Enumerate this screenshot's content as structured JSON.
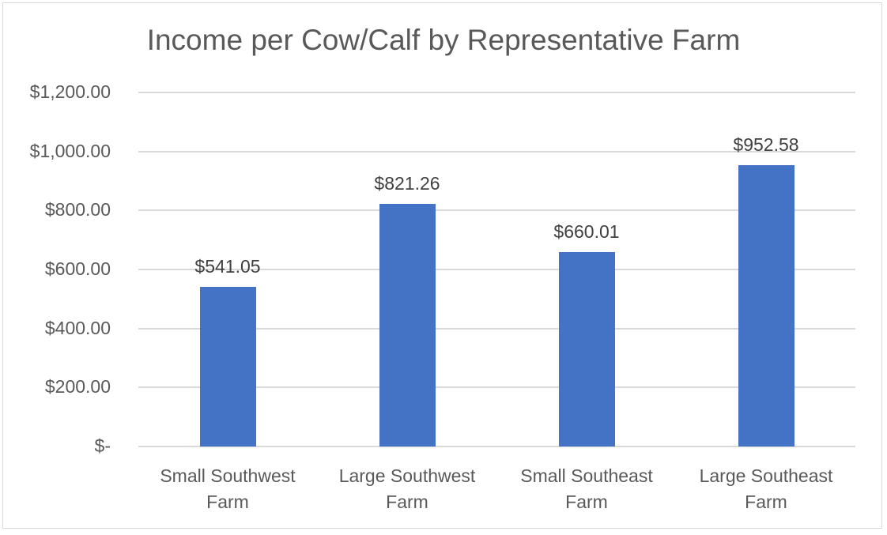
{
  "chart_data": {
    "type": "bar",
    "title": "Income per Cow/Calf by Representative Farm",
    "xlabel": "",
    "ylabel": "",
    "categories": [
      "Small Southwest Farm",
      "Large Southwest Farm",
      "Small Southeast Farm",
      "Large Southeast Farm"
    ],
    "category_lines": [
      [
        "Small Southwest",
        "Farm"
      ],
      [
        "Large Southwest",
        "Farm"
      ],
      [
        "Small Southeast",
        "Farm"
      ],
      [
        "Large Southeast",
        "Farm"
      ]
    ],
    "values": [
      541.05,
      821.26,
      660.01,
      952.58
    ],
    "data_labels": [
      "$541.05",
      "$821.26",
      "$660.01",
      "$952.58"
    ],
    "ylim": [
      0,
      1200
    ],
    "yticks": [
      0,
      200,
      400,
      600,
      800,
      1000,
      1200
    ],
    "ytick_labels": [
      "$-",
      "$200.00",
      "$400.00",
      "$600.00",
      "$800.00",
      "$1,000.00",
      "$1,200.00"
    ],
    "grid": true,
    "legend": null,
    "bar_color": "#4472c4"
  }
}
